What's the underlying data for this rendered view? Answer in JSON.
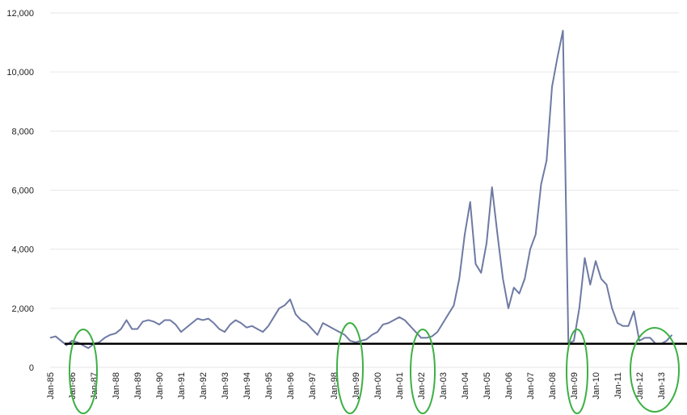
{
  "chart_data": {
    "type": "line",
    "categories": [
      "Jan-85",
      null,
      null,
      null,
      "Jan-86",
      null,
      null,
      null,
      "Jan-87",
      null,
      null,
      null,
      "Jan-88",
      null,
      null,
      null,
      "Jan-89",
      null,
      null,
      null,
      "Jan-90",
      null,
      null,
      null,
      "Jan-91",
      null,
      null,
      null,
      "Jan-92",
      null,
      null,
      null,
      "Jan-93",
      null,
      null,
      null,
      "Jan-94",
      null,
      null,
      null,
      "Jan-95",
      null,
      null,
      null,
      "Jan-96",
      null,
      null,
      null,
      "Jan-97",
      null,
      null,
      null,
      "Jan-98",
      null,
      null,
      null,
      "Jan-99",
      null,
      null,
      null,
      "Jan-00",
      null,
      null,
      null,
      "Jan-01",
      null,
      null,
      null,
      "Jan-02",
      null,
      null,
      null,
      "Jan-03",
      null,
      null,
      null,
      "Jan-04",
      null,
      null,
      null,
      "Jan-05",
      null,
      null,
      null,
      "Jan-06",
      null,
      null,
      null,
      "Jan-07",
      null,
      null,
      null,
      "Jan-08",
      null,
      null,
      null,
      "Jan-09",
      null,
      null,
      null,
      "Jan-10",
      null,
      null,
      null,
      "Jan-11",
      null,
      null,
      null,
      "Jan-12",
      null,
      null,
      null,
      "Jan-13",
      null,
      null
    ],
    "series": [
      {
        "color": "#6e7aa3",
        "values": [
          1000,
          1050,
          900,
          750,
          900,
          850,
          750,
          650,
          800,
          850,
          1000,
          1100,
          1150,
          1300,
          1600,
          1300,
          1300,
          1550,
          1600,
          1550,
          1450,
          1600,
          1600,
          1450,
          1200,
          1350,
          1500,
          1650,
          1600,
          1650,
          1500,
          1300,
          1200,
          1450,
          1600,
          1500,
          1350,
          1400,
          1300,
          1200,
          1400,
          1700,
          2000,
          2100,
          2300,
          1800,
          1600,
          1500,
          1300,
          1100,
          1500,
          1400,
          1300,
          1200,
          1100,
          900,
          850,
          900,
          950,
          1100,
          1200,
          1450,
          1500,
          1600,
          1700,
          1600,
          1400,
          1200,
          1000,
          1000,
          1050,
          1200,
          1500,
          1800,
          2100,
          3000,
          4500,
          5600,
          3500,
          3200,
          4200,
          6100,
          4500,
          3000,
          2000,
          2700,
          2500,
          3000,
          4000,
          4500,
          6200,
          7000,
          9500,
          10500,
          11400,
          800,
          900,
          2000,
          3700,
          2800,
          3600,
          3000,
          2800,
          2000,
          1500,
          1400,
          1400,
          1900,
          900,
          1000,
          1000,
          800,
          800,
          900,
          1100
        ]
      }
    ],
    "ylim": [
      0,
      12000
    ],
    "yticks": [
      0,
      {
        "value": 2000,
        "label": "2,000"
      },
      {
        "value": 4000,
        "label": "4,000"
      },
      {
        "value": 6000,
        "label": "6,000"
      },
      {
        "value": 8000,
        "label": "8,000"
      },
      {
        "value": 10000,
        "label": "10,000"
      },
      {
        "value": 12000,
        "label": "12,000"
      }
    ],
    "grid": true,
    "reference_line": {
      "value": 800,
      "color": "#000000"
    }
  }
}
